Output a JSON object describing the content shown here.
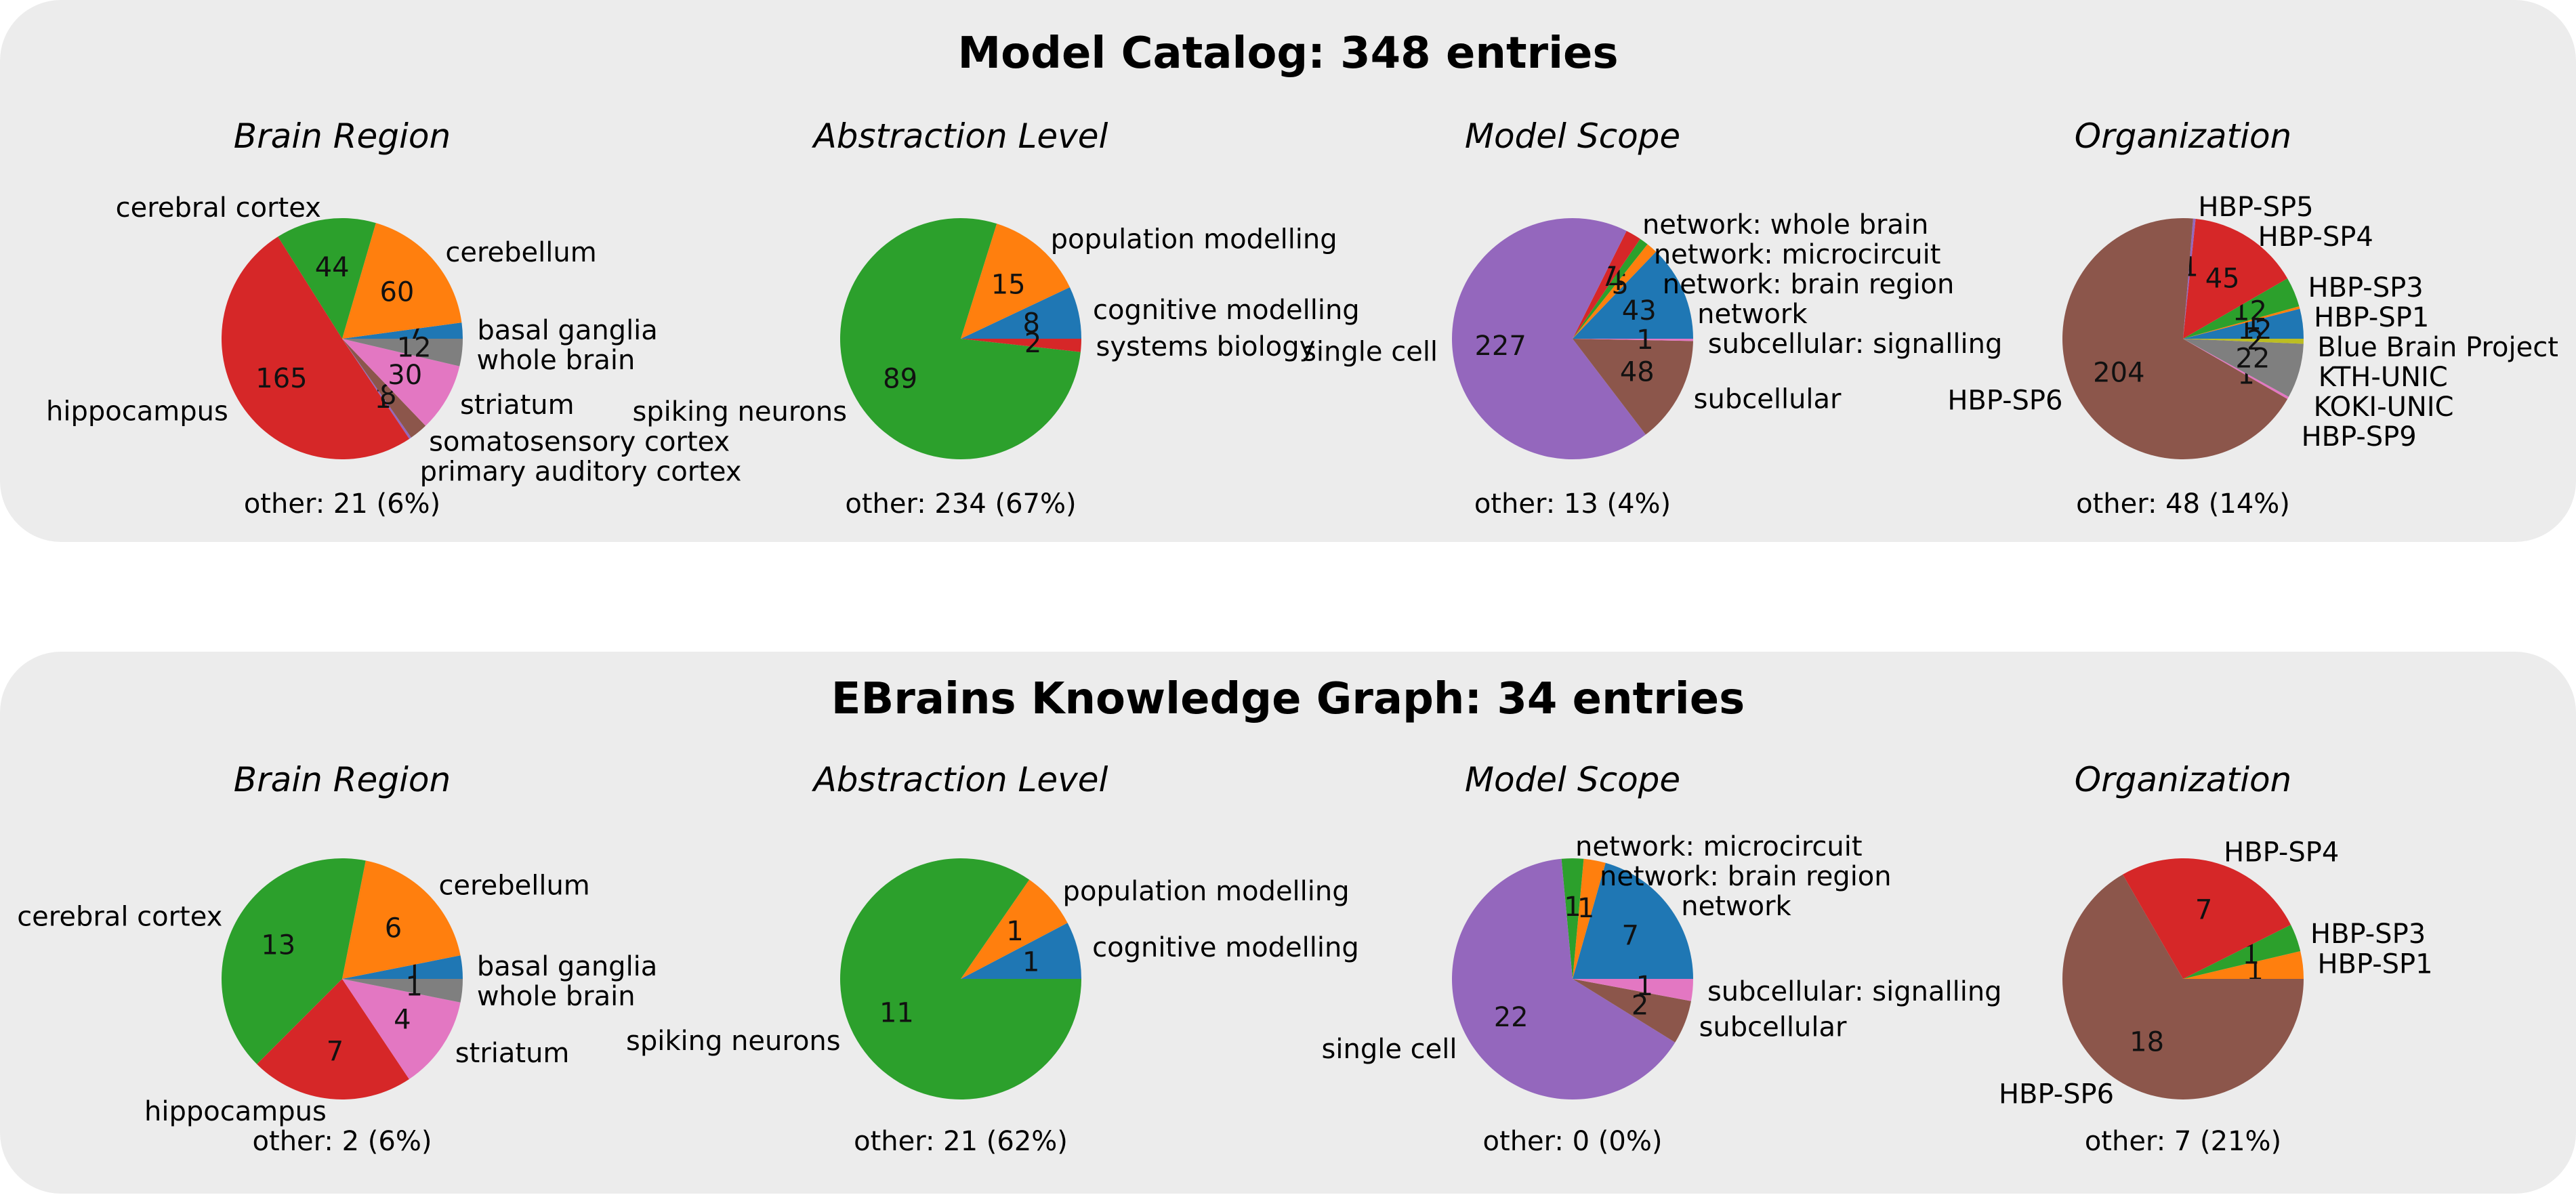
{
  "colors": {
    "blue": "#1f77b4",
    "orange": "#ff7f0e",
    "green": "#2ca02c",
    "red": "#d62728",
    "purple": "#9467bd",
    "brown": "#8c564b",
    "pink": "#e377c2",
    "gray": "#7f7f7f",
    "olive": "#bcbd22"
  },
  "chart_data": [
    {
      "type": "pie",
      "title": "Model Catalog: 348 entries",
      "charts": [
        {
          "title": "Brain Region",
          "other": "other: 21 (6%)",
          "slices": [
            {
              "label": "basal ganglia",
              "value": 7,
              "color": "blue"
            },
            {
              "label": "cerebellum",
              "value": 60,
              "color": "orange"
            },
            {
              "label": "cerebral cortex",
              "value": 44,
              "color": "green"
            },
            {
              "label": "hippocampus",
              "value": 165,
              "color": "red"
            },
            {
              "label": "primary auditory cortex",
              "value": 1,
              "color": "purple"
            },
            {
              "label": "somatosensory cortex",
              "value": 8,
              "color": "brown"
            },
            {
              "label": "striatum",
              "value": 30,
              "color": "pink"
            },
            {
              "label": "whole brain",
              "value": 12,
              "color": "gray"
            }
          ]
        },
        {
          "title": "Abstraction Level",
          "other": "other: 234 (67%)",
          "slices": [
            {
              "label": "cognitive modelling",
              "value": 8,
              "color": "blue"
            },
            {
              "label": "population modelling",
              "value": 15,
              "color": "orange"
            },
            {
              "label": "spiking neurons",
              "value": 89,
              "color": "green"
            },
            {
              "label": "systems biology",
              "value": 2,
              "color": "red"
            }
          ]
        },
        {
          "title": "Model Scope",
          "other": "other: 13 (4%)",
          "slices": [
            {
              "label": "network",
              "value": 43,
              "color": "blue"
            },
            {
              "label": "network: brain region",
              "value": 5,
              "color": "orange"
            },
            {
              "label": "network: microcircuit",
              "value": 4,
              "color": "green"
            },
            {
              "label": "network: whole brain",
              "value": 7,
              "color": "red"
            },
            {
              "label": "single cell",
              "value": 227,
              "color": "purple"
            },
            {
              "label": "subcellular",
              "value": 48,
              "color": "brown"
            },
            {
              "label": "subcellular: signalling",
              "value": 1,
              "color": "pink"
            }
          ]
        },
        {
          "title": "Organization",
          "other": "other: 48 (14%)",
          "slices": [
            {
              "label": "Blue Brain Project",
              "value": 12,
              "color": "blue"
            },
            {
              "label": "HBP-SP1",
              "value": 1,
              "color": "orange"
            },
            {
              "label": "HBP-SP3",
              "value": 12,
              "color": "green"
            },
            {
              "label": "HBP-SP4",
              "value": 45,
              "color": "red"
            },
            {
              "label": "HBP-SP5",
              "value": 1,
              "color": "purple"
            },
            {
              "label": "HBP-SP6",
              "value": 204,
              "color": "brown"
            },
            {
              "label": "HBP-SP9",
              "value": 1,
              "color": "pink"
            },
            {
              "label": "KOKI-UNIC",
              "value": 22,
              "color": "gray"
            },
            {
              "label": "KTH-UNIC",
              "value": 2,
              "color": "olive"
            }
          ]
        }
      ]
    },
    {
      "type": "pie",
      "title": "EBrains Knowledge Graph: 34 entries",
      "charts": [
        {
          "title": "Brain Region",
          "other": "other: 2 (6%)",
          "slices": [
            {
              "label": "basal ganglia",
              "value": 1,
              "color": "blue"
            },
            {
              "label": "cerebellum",
              "value": 6,
              "color": "orange"
            },
            {
              "label": "cerebral cortex",
              "value": 13,
              "color": "green"
            },
            {
              "label": "hippocampus",
              "value": 7,
              "color": "red"
            },
            {
              "label": "striatum",
              "value": 4,
              "color": "pink"
            },
            {
              "label": "whole brain",
              "value": 1,
              "color": "gray"
            }
          ]
        },
        {
          "title": "Abstraction Level",
          "other": "other: 21 (62%)",
          "slices": [
            {
              "label": "cognitive modelling",
              "value": 1,
              "color": "blue"
            },
            {
              "label": "population modelling",
              "value": 1,
              "color": "orange"
            },
            {
              "label": "spiking neurons",
              "value": 11,
              "color": "green"
            }
          ]
        },
        {
          "title": "Model Scope",
          "other": "other: 0 (0%)",
          "slices": [
            {
              "label": "network",
              "value": 7,
              "color": "blue"
            },
            {
              "label": "network: brain region",
              "value": 1,
              "color": "orange"
            },
            {
              "label": "network: microcircuit",
              "value": 1,
              "color": "green"
            },
            {
              "label": "single cell",
              "value": 22,
              "color": "purple"
            },
            {
              "label": "subcellular",
              "value": 2,
              "color": "brown"
            },
            {
              "label": "subcellular: signalling",
              "value": 1,
              "color": "pink"
            }
          ]
        },
        {
          "title": "Organization",
          "other": "other: 7 (21%)",
          "slices": [
            {
              "label": "HBP-SP1",
              "value": 1,
              "color": "orange"
            },
            {
              "label": "HBP-SP3",
              "value": 1,
              "color": "green"
            },
            {
              "label": "HBP-SP4",
              "value": 7,
              "color": "red"
            },
            {
              "label": "HBP-SP6",
              "value": 18,
              "color": "brown"
            }
          ]
        }
      ]
    }
  ]
}
